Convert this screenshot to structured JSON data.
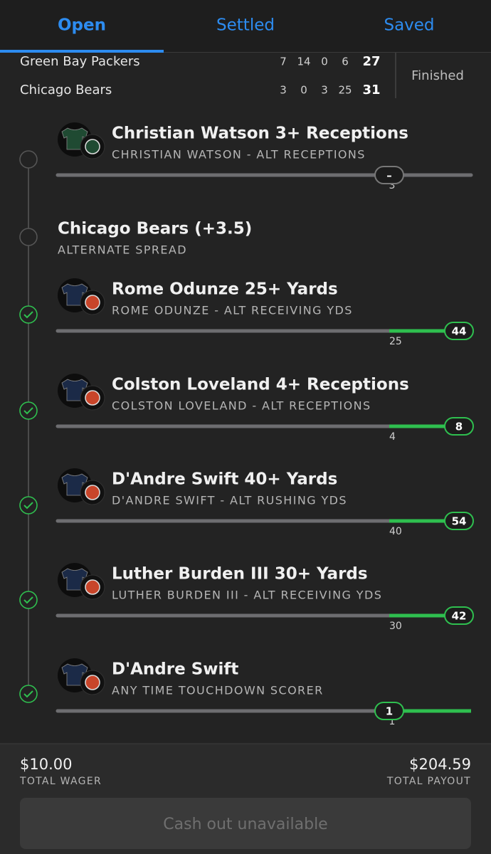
{
  "tabs": [
    "Open",
    "Settled",
    "Saved"
  ],
  "scoreboard": {
    "rows": [
      {
        "team": "Green Bay Packers",
        "scores": [
          7,
          14,
          0,
          6
        ],
        "total": 27
      },
      {
        "team": "Chicago Bears",
        "scores": [
          3,
          0,
          3,
          25
        ],
        "total": 31
      }
    ],
    "status": "Finished"
  },
  "legs": [
    {
      "title": "Christian Watson 3+ Receptions",
      "subtitle": "CHRISTIAN WATSON - ALT RECEPTIONS",
      "settled": false,
      "jersey_color": "#1f4a32",
      "logo_color": "#1f4a32",
      "progress": {
        "target": 3,
        "current": "–"
      }
    },
    {
      "title": "Chicago Bears (+3.5)",
      "subtitle": "ALTERNATE SPREAD",
      "settled": false
    },
    {
      "title": "Rome Odunze 25+ Yards",
      "subtitle": "ROME ODUNZE - ALT RECEIVING YDS",
      "settled": true,
      "jersey_color": "#1b2a47",
      "logo_color": "#c8452a",
      "progress": {
        "target": 25,
        "current": 44
      }
    },
    {
      "title": "Colston Loveland 4+ Receptions",
      "subtitle": "COLSTON LOVELAND - ALT RECEPTIONS",
      "settled": true,
      "jersey_color": "#1b2a47",
      "logo_color": "#c8452a",
      "progress": {
        "target": 4,
        "current": 8
      }
    },
    {
      "title": "D'Andre Swift 40+ Yards",
      "subtitle": "D'ANDRE SWIFT - ALT RUSHING YDS",
      "settled": true,
      "jersey_color": "#1b2a47",
      "logo_color": "#c8452a",
      "progress": {
        "target": 40,
        "current": 54
      }
    },
    {
      "title": "Luther Burden III 30+ Yards",
      "subtitle": "LUTHER BURDEN III - ALT RECEIVING YDS",
      "settled": true,
      "jersey_color": "#1b2a47",
      "logo_color": "#c8452a",
      "progress": {
        "target": 30,
        "current": 42
      }
    },
    {
      "title": "D'Andre Swift",
      "subtitle": "ANY TIME TOUCHDOWN SCORER",
      "settled": true,
      "jersey_color": "#1b2a47",
      "logo_color": "#c8452a",
      "progress": {
        "target": 1,
        "current": 1
      }
    }
  ],
  "footer": {
    "wager": "$10.00",
    "wager_label": "TOTAL WAGER",
    "payout": "$204.59",
    "payout_label": "TOTAL PAYOUT",
    "button": "Cash out unavailable"
  }
}
